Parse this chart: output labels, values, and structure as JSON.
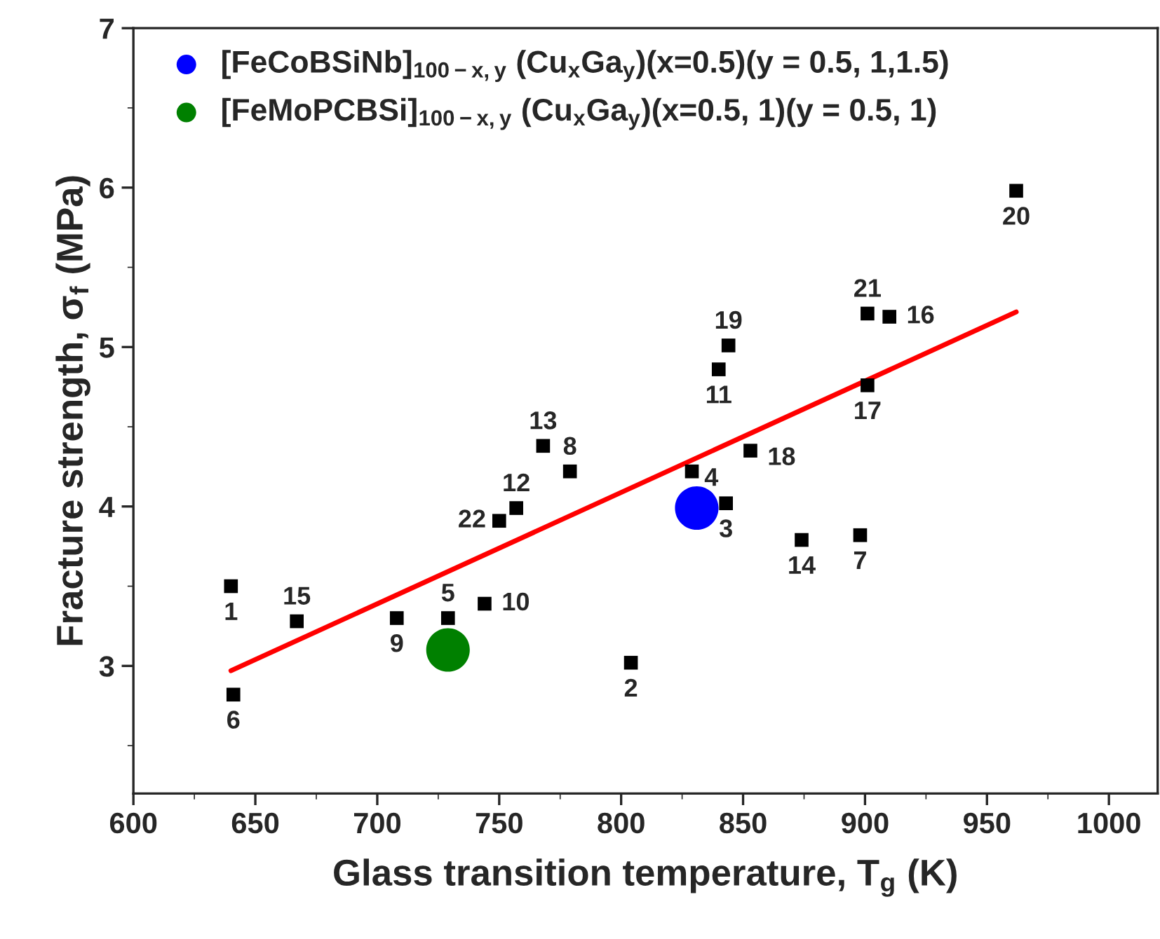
{
  "chart_data": {
    "type": "scatter",
    "xlabel": "Glass transition temperature, T$_{g}$ (K)",
    "ylabel": "Fracture strength, σ$_{f}$ (MPa)",
    "xlim": [
      600,
      1020
    ],
    "xticks": [
      600,
      650,
      700,
      750,
      800,
      850,
      900,
      950,
      1000
    ],
    "ylim": [
      2.2,
      7
    ],
    "yticks": [
      3,
      4,
      5,
      6,
      7
    ],
    "grid": false,
    "legend": "top left",
    "series": [
      {
        "color": "#000000",
        "marker": "square",
        "x": [
          640,
          804,
          843,
          829,
          729,
          641,
          898,
          779,
          708,
          744,
          840,
          757,
          768,
          874,
          667,
          910,
          901,
          853,
          844,
          962,
          901,
          750
        ],
        "values": [
          3.5,
          3.02,
          4.02,
          4.22,
          3.3,
          2.82,
          3.82,
          4.22,
          3.3,
          3.39,
          4.86,
          3.99,
          4.38,
          3.79,
          3.28,
          5.19,
          4.76,
          4.35,
          5.01,
          5.98,
          5.21,
          3.91
        ]
      },
      {
        "type": "line",
        "color": "#ff0000",
        "marker": "none",
        "line_style": "solid",
        "x": [
          640,
          962
        ],
        "values": [
          2.97,
          5.22
        ]
      },
      {
        "type": "scatter",
        "name": "[FeCoBSiNb]$_{100−x,y}$ (Cu$_{x}$Ga$_{y}$)(x=0.5)(y = 0.5, 1,1.5)",
        "color": "#0000ff",
        "marker": "circle",
        "x": [
          831
        ],
        "values": [
          3.99
        ]
      },
      {
        "type": "scatter",
        "name": "[FeMoPCBSi]$_{100−x,y}$ (Cu$_{x}$Ga$_{y}$)(x=0.5, 1)(y = 0.5, 1)",
        "color": "#008000",
        "marker": "circle",
        "x": [
          729
        ],
        "values": [
          3.1
        ]
      }
    ],
    "annotations": [
      {
        "text": "1",
        "x": 640,
        "y": 3.5
      },
      {
        "text": "2",
        "x": 804,
        "y": 3.02
      },
      {
        "text": "3",
        "x": 843,
        "y": 4.02
      },
      {
        "text": "4",
        "x": 829,
        "y": 4.22
      },
      {
        "text": "5",
        "x": 729,
        "y": 3.3
      },
      {
        "text": "6",
        "x": 641,
        "y": 2.82
      },
      {
        "text": "7",
        "x": 898,
        "y": 3.82
      },
      {
        "text": "8",
        "x": 779,
        "y": 4.22
      },
      {
        "text": "9",
        "x": 708,
        "y": 3.3
      },
      {
        "text": "10",
        "x": 744,
        "y": 3.39
      },
      {
        "text": "11",
        "x": 840,
        "y": 4.86
      },
      {
        "text": "12",
        "x": 757,
        "y": 3.99
      },
      {
        "text": "13",
        "x": 768,
        "y": 4.38
      },
      {
        "text": "14",
        "x": 874,
        "y": 3.79
      },
      {
        "text": "15",
        "x": 667,
        "y": 3.28
      },
      {
        "text": "16",
        "x": 910,
        "y": 5.19
      },
      {
        "text": "17",
        "x": 901,
        "y": 4.76
      },
      {
        "text": "18",
        "x": 853,
        "y": 4.35
      },
      {
        "text": "19",
        "x": 844,
        "y": 5.01
      },
      {
        "text": "20",
        "x": 962,
        "y": 5.98
      },
      {
        "text": "21",
        "x": 901,
        "y": 5.21
      },
      {
        "text": "22",
        "x": 750,
        "y": 3.91
      }
    ]
  }
}
